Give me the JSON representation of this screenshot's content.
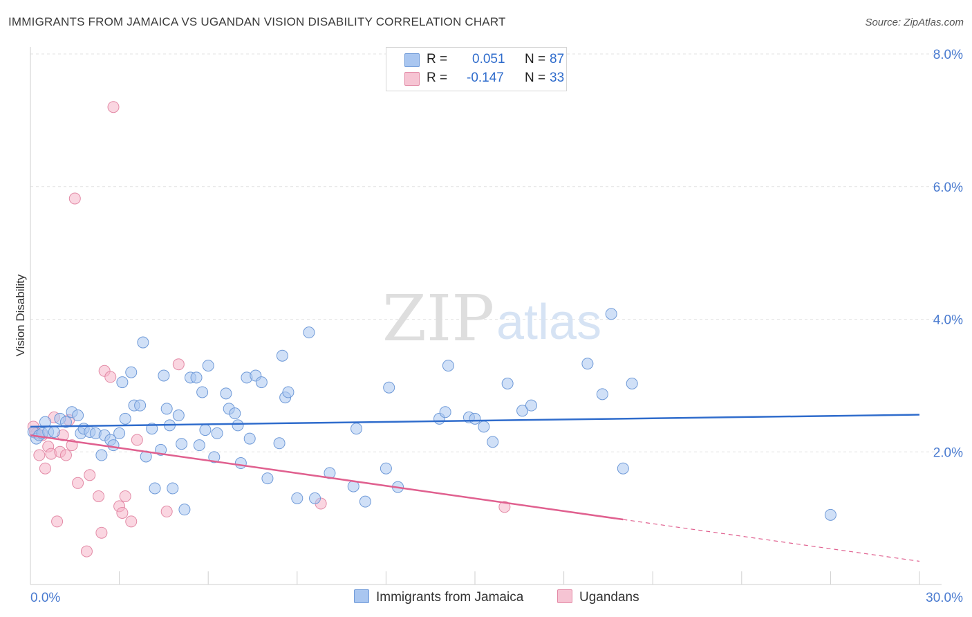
{
  "title": "IMMIGRANTS FROM JAMAICA VS UGANDAN VISION DISABILITY CORRELATION CHART",
  "source": "Source: ZipAtlas.com",
  "watermark": {
    "zip": "ZIP",
    "atlas": "atlas"
  },
  "legend": {
    "rows": [
      {
        "r_label": "R =",
        "r_value": "0.051",
        "n_label": "N =",
        "n_value": "87",
        "color": "#a9c6f0"
      },
      {
        "r_label": "R =",
        "r_value": "-0.147",
        "n_label": "N =",
        "n_value": "33",
        "color": "#f6b5c8"
      }
    ]
  },
  "bottom_legend": {
    "jamaica": "Immigrants from Jamaica",
    "ugandans": "Ugandans"
  },
  "chart_data": {
    "type": "scatter",
    "title": "IMMIGRANTS FROM JAMAICA VS UGANDAN VISION DISABILITY CORRELATION CHART",
    "xlabel": "",
    "ylabel": "Vision Disability",
    "xlim": [
      0,
      30
    ],
    "ylim": [
      0,
      8
    ],
    "x_tick_labels": [
      "0.0%",
      "30.0%"
    ],
    "y_ticks": [
      2,
      4,
      6,
      8
    ],
    "y_tick_labels": [
      "2.0%",
      "4.0%",
      "6.0%",
      "8.0%"
    ],
    "grid": true,
    "legend_position": "top-center",
    "colors": {
      "jamaica_fill": "#a9c6f0",
      "jamaica_stroke": "#6f9ad8",
      "jamaica_line": "#2f6ccc",
      "ugandans_fill": "#f6b5c8",
      "ugandans_stroke": "#e38aa6",
      "ugandans_line": "#e0608f"
    },
    "series": [
      {
        "name": "Immigrants from Jamaica",
        "trend": {
          "x": [
            0,
            30
          ],
          "y": [
            2.38,
            2.56
          ]
        },
        "points": [
          [
            0.1,
            2.3
          ],
          [
            0.2,
            2.2
          ],
          [
            0.3,
            2.25
          ],
          [
            0.4,
            2.28
          ],
          [
            0.5,
            2.45
          ],
          [
            0.6,
            2.3
          ],
          [
            0.8,
            2.3
          ],
          [
            1.0,
            2.5
          ],
          [
            1.2,
            2.45
          ],
          [
            1.4,
            2.6
          ],
          [
            1.6,
            2.55
          ],
          [
            1.7,
            2.28
          ],
          [
            1.8,
            2.35
          ],
          [
            2.0,
            2.3
          ],
          [
            2.2,
            2.28
          ],
          [
            2.4,
            1.95
          ],
          [
            2.5,
            2.25
          ],
          [
            2.7,
            2.18
          ],
          [
            2.8,
            2.1
          ],
          [
            3.0,
            2.28
          ],
          [
            3.1,
            3.05
          ],
          [
            3.2,
            2.5
          ],
          [
            3.4,
            3.2
          ],
          [
            3.5,
            2.7
          ],
          [
            3.7,
            2.7
          ],
          [
            3.8,
            3.65
          ],
          [
            3.9,
            1.93
          ],
          [
            4.1,
            2.35
          ],
          [
            4.2,
            1.45
          ],
          [
            4.4,
            2.03
          ],
          [
            4.5,
            3.15
          ],
          [
            4.6,
            2.65
          ],
          [
            4.7,
            2.4
          ],
          [
            4.8,
            1.45
          ],
          [
            5.0,
            2.55
          ],
          [
            5.1,
            2.12
          ],
          [
            5.2,
            1.13
          ],
          [
            5.4,
            3.12
          ],
          [
            5.6,
            3.12
          ],
          [
            5.7,
            2.1
          ],
          [
            5.8,
            2.9
          ],
          [
            5.9,
            2.33
          ],
          [
            6.0,
            3.3
          ],
          [
            6.2,
            1.92
          ],
          [
            6.3,
            2.28
          ],
          [
            6.6,
            2.88
          ],
          [
            6.7,
            2.65
          ],
          [
            6.9,
            2.58
          ],
          [
            7.0,
            2.4
          ],
          [
            7.1,
            1.83
          ],
          [
            7.3,
            3.12
          ],
          [
            7.4,
            2.2
          ],
          [
            7.6,
            3.15
          ],
          [
            7.8,
            3.05
          ],
          [
            8.0,
            1.6
          ],
          [
            8.4,
            2.13
          ],
          [
            8.5,
            3.45
          ],
          [
            8.6,
            2.82
          ],
          [
            8.7,
            2.9
          ],
          [
            9.0,
            1.3
          ],
          [
            9.4,
            3.8
          ],
          [
            9.6,
            1.3
          ],
          [
            10.1,
            1.68
          ],
          [
            10.9,
            1.48
          ],
          [
            11.0,
            2.35
          ],
          [
            11.3,
            1.25
          ],
          [
            12.0,
            1.75
          ],
          [
            12.1,
            2.97
          ],
          [
            12.4,
            1.47
          ],
          [
            13.8,
            2.5
          ],
          [
            14.0,
            2.6
          ],
          [
            14.1,
            3.3
          ],
          [
            14.8,
            2.52
          ],
          [
            15.0,
            2.5
          ],
          [
            15.3,
            2.38
          ],
          [
            15.6,
            2.15
          ],
          [
            16.1,
            3.03
          ],
          [
            16.6,
            2.62
          ],
          [
            16.9,
            2.7
          ],
          [
            18.8,
            3.33
          ],
          [
            19.3,
            2.87
          ],
          [
            19.6,
            4.08
          ],
          [
            20.0,
            1.75
          ],
          [
            20.3,
            3.03
          ],
          [
            27.0,
            1.05
          ]
        ]
      },
      {
        "name": "Ugandans",
        "trend": {
          "x": [
            0,
            20
          ],
          "y": [
            2.25,
            0.98
          ]
        },
        "trend_dashed": {
          "x": [
            20,
            30
          ],
          "y": [
            0.98,
            0.35
          ]
        },
        "points": [
          [
            0.1,
            2.38
          ],
          [
            0.2,
            2.28
          ],
          [
            0.3,
            1.95
          ],
          [
            0.4,
            2.25
          ],
          [
            0.5,
            1.75
          ],
          [
            0.6,
            2.08
          ],
          [
            0.7,
            1.97
          ],
          [
            0.8,
            2.52
          ],
          [
            0.9,
            0.95
          ],
          [
            1.0,
            2.0
          ],
          [
            1.1,
            2.25
          ],
          [
            1.2,
            1.95
          ],
          [
            1.3,
            2.48
          ],
          [
            1.4,
            2.1
          ],
          [
            1.5,
            5.82
          ],
          [
            1.6,
            1.53
          ],
          [
            1.9,
            0.5
          ],
          [
            2.0,
            1.65
          ],
          [
            2.3,
            1.33
          ],
          [
            2.4,
            0.78
          ],
          [
            2.5,
            3.22
          ],
          [
            2.7,
            3.13
          ],
          [
            2.8,
            7.2
          ],
          [
            3.0,
            1.18
          ],
          [
            3.1,
            1.08
          ],
          [
            3.2,
            1.33
          ],
          [
            3.4,
            0.95
          ],
          [
            3.6,
            2.18
          ],
          [
            4.6,
            1.1
          ],
          [
            5.0,
            3.32
          ],
          [
            9.8,
            1.22
          ],
          [
            16.0,
            1.17
          ],
          [
            0.15,
            2.3
          ]
        ]
      }
    ]
  }
}
